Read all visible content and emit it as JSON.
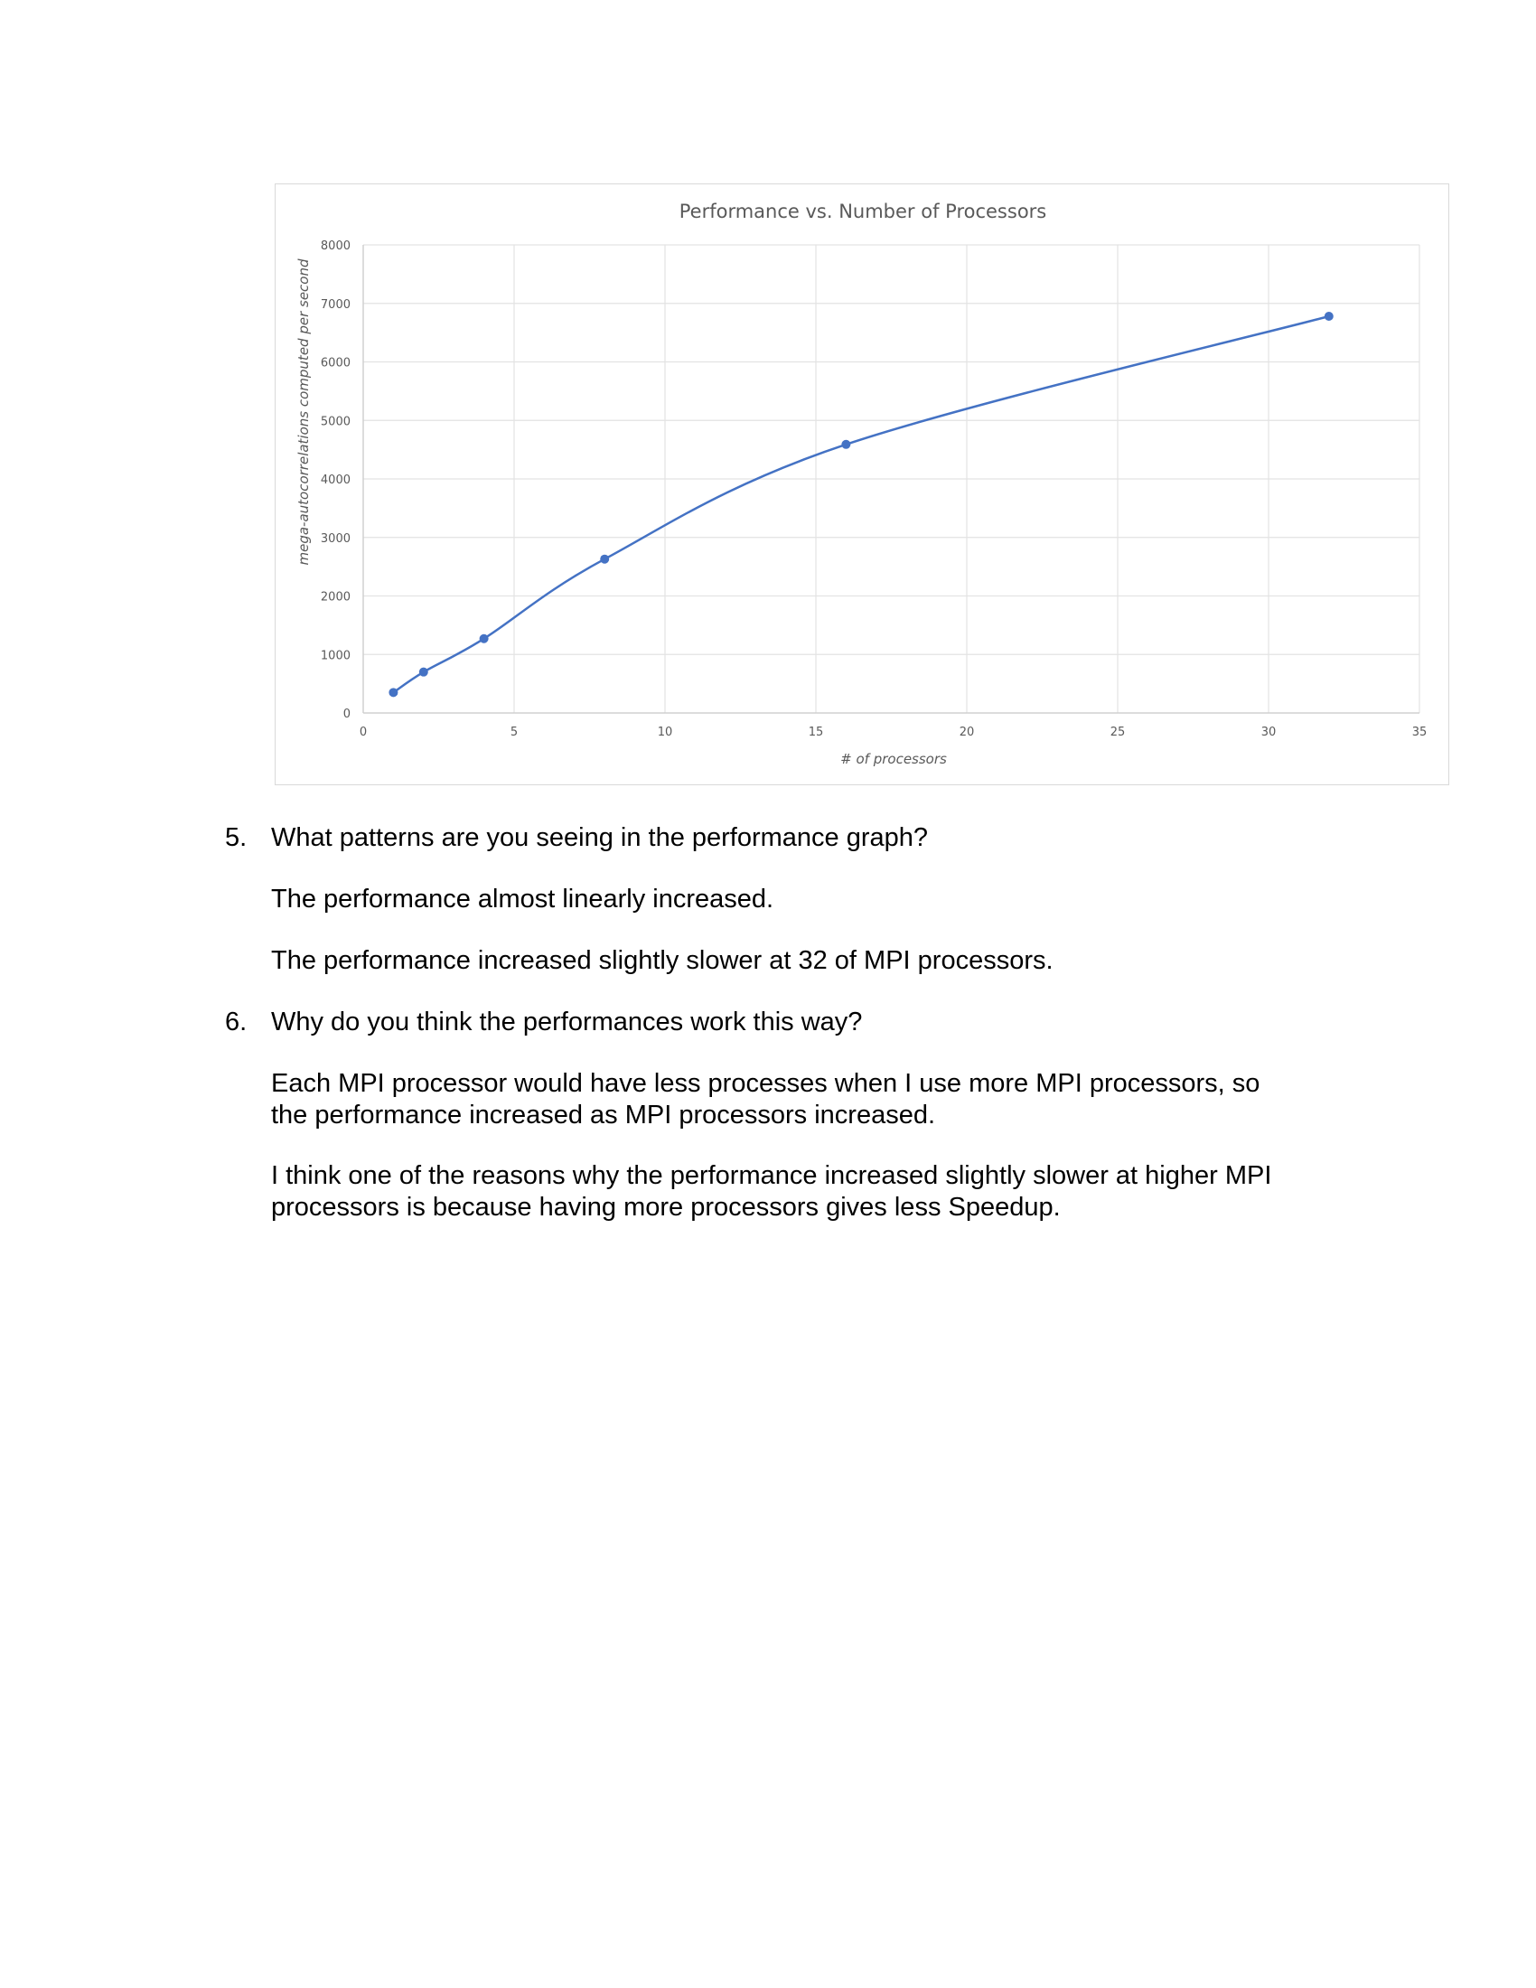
{
  "chart_data": {
    "type": "line",
    "title": "Performance vs. Number of Processors",
    "xlabel": "# of processors",
    "ylabel": "mega-autocorrelations computed per second",
    "xlim": [
      0,
      35
    ],
    "ylim": [
      0,
      8000
    ],
    "x_ticks": [
      "0",
      "5",
      "10",
      "15",
      "20",
      "25",
      "30",
      "35"
    ],
    "y_ticks": [
      "0",
      "1000",
      "2000",
      "3000",
      "4000",
      "5000",
      "6000",
      "7000",
      "8000"
    ],
    "grid": true,
    "smoothed": true,
    "series": [
      {
        "x": [
          1,
          2,
          4,
          8,
          16,
          32
        ],
        "y": [
          350,
          700,
          1270,
          2630,
          4590,
          6780
        ],
        "color": "#4472c4"
      }
    ]
  },
  "questions": [
    {
      "number": "5.",
      "question": "What patterns are you seeing in the performance graph?",
      "answers": [
        [
          "The performance almost linearly increased."
        ],
        [
          "The performance increased slightly slower at 32 of MPI processors."
        ]
      ]
    },
    {
      "number": "6.",
      "question": "Why do you think the performances work this way?",
      "answers": [
        [
          "Each MPI processor would have less processes when I use more MPI processors, so",
          "the performance increased as MPI processors increased."
        ],
        [
          "I think one of the reasons why the performance increased slightly slower at higher MPI",
          "processors is because having more processors gives less Speedup."
        ]
      ]
    }
  ]
}
